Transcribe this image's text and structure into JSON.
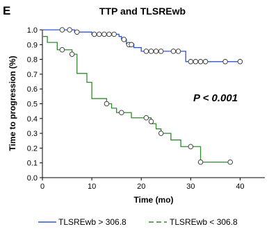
{
  "panel_label": "E",
  "chart_data": {
    "type": "line",
    "subtype": "kaplan-meier step",
    "title": "TTP and TLSREwb",
    "xlabel": "Time (mo)",
    "ylabel": "Time to progression (%)",
    "xlim": [
      0,
      45
    ],
    "ylim": [
      0,
      1
    ],
    "x_ticks": [
      0,
      10,
      20,
      30,
      40
    ],
    "y_ticks": [
      0.0,
      0.1,
      0.2,
      0.3,
      0.4,
      0.5,
      0.6,
      0.7,
      0.8,
      0.9,
      1.0
    ],
    "x_tick_labels": [
      "0",
      "10",
      "20",
      "30",
      "40"
    ],
    "y_tick_labels": [
      "0.0",
      "0.1",
      "0.2",
      "0.3",
      "0.4",
      "0.5",
      "0.6",
      "0.7",
      "0.8",
      "0.9",
      "1.0"
    ],
    "grid": false,
    "legend_position": "bottom",
    "annotation": "P < 0.001",
    "series": [
      {
        "name": "TLSREwb > 306.8",
        "color": "#2b55d6",
        "steps": [
          [
            0,
            1.0
          ],
          [
            6.5,
            0.985
          ],
          [
            10,
            0.97
          ],
          [
            15.5,
            0.955
          ],
          [
            16,
            0.935
          ],
          [
            17,
            0.905
          ],
          [
            18.5,
            0.88
          ],
          [
            20,
            0.855
          ],
          [
            29,
            0.785
          ],
          [
            40,
            0.785
          ]
        ],
        "censored": [
          [
            4,
            1.0
          ],
          [
            5.5,
            1.0
          ],
          [
            7,
            0.985
          ],
          [
            10.5,
            0.97
          ],
          [
            11.5,
            0.97
          ],
          [
            12.5,
            0.97
          ],
          [
            13.5,
            0.97
          ],
          [
            14.5,
            0.97
          ],
          [
            16.5,
            0.935
          ],
          [
            17.5,
            0.9
          ],
          [
            18,
            0.9
          ],
          [
            21,
            0.855
          ],
          [
            22,
            0.855
          ],
          [
            23,
            0.855
          ],
          [
            24,
            0.855
          ],
          [
            26.5,
            0.855
          ],
          [
            27.5,
            0.855
          ],
          [
            30,
            0.785
          ],
          [
            31,
            0.785
          ],
          [
            32,
            0.785
          ],
          [
            33,
            0.785
          ],
          [
            37,
            0.785
          ],
          [
            40,
            0.785
          ]
        ]
      },
      {
        "name": "TLSREwb < 306.8",
        "color": "#2e8b2e",
        "steps": [
          [
            0,
            0.955
          ],
          [
            1,
            0.915
          ],
          [
            3,
            0.865
          ],
          [
            6,
            0.835
          ],
          [
            7,
            0.705
          ],
          [
            9,
            0.645
          ],
          [
            10,
            0.535
          ],
          [
            13,
            0.5
          ],
          [
            14,
            0.47
          ],
          [
            15,
            0.44
          ],
          [
            18,
            0.405
          ],
          [
            22,
            0.365
          ],
          [
            23,
            0.33
          ],
          [
            24,
            0.3
          ],
          [
            26,
            0.255
          ],
          [
            28,
            0.21
          ],
          [
            32,
            0.105
          ],
          [
            38,
            0.105
          ]
        ],
        "censored": [
          [
            4,
            0.865
          ],
          [
            6,
            0.835
          ],
          [
            13,
            0.5
          ],
          [
            16,
            0.44
          ],
          [
            21,
            0.405
          ],
          [
            22,
            0.38
          ],
          [
            24,
            0.3
          ],
          [
            30,
            0.21
          ],
          [
            32,
            0.105
          ],
          [
            38,
            0.105
          ]
        ]
      }
    ]
  }
}
